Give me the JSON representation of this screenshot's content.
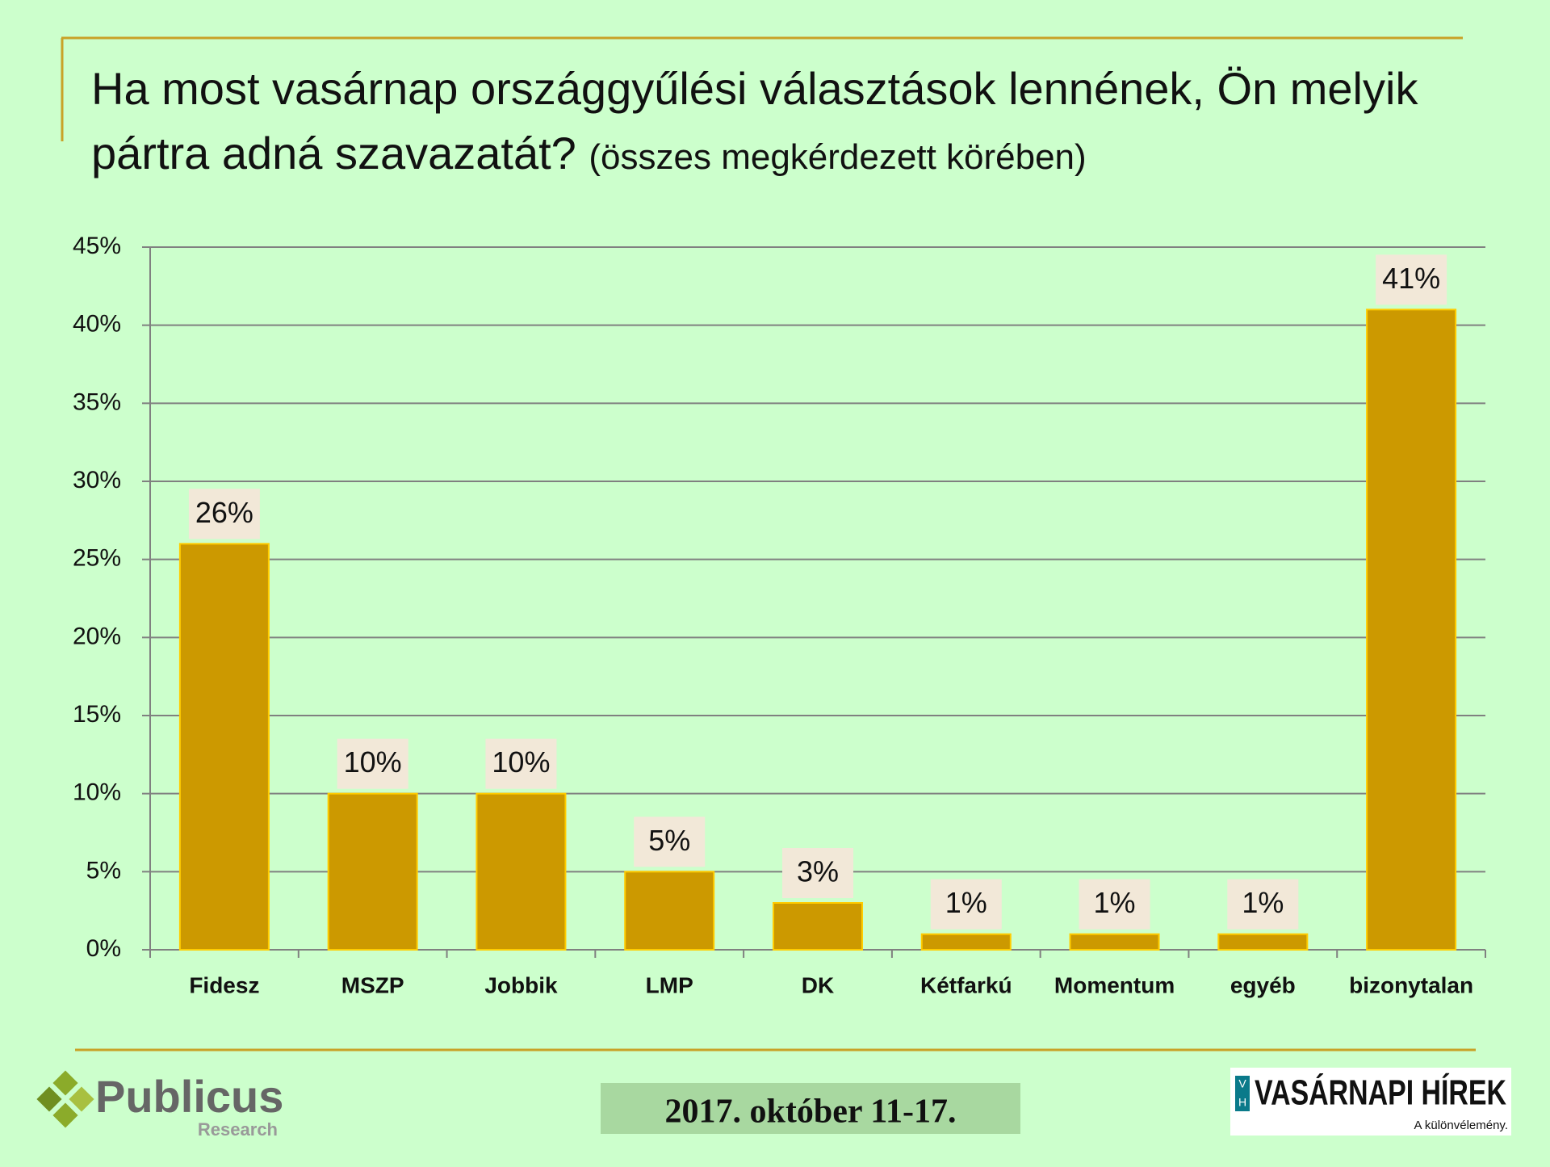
{
  "chart_data": {
    "type": "bar",
    "title": "Ha most vasárnap országgyűlési választások lennének, Ön melyik pártra adná szavazatát?",
    "subtitle": "(összes megkérdezett körében)",
    "categories": [
      "Fidesz",
      "MSZP",
      "Jobbik",
      "LMP",
      "DK",
      "Kétfarkú",
      "Momentum",
      "egyéb",
      "bizonytalan"
    ],
    "values": [
      26,
      10,
      10,
      5,
      3,
      1,
      1,
      1,
      41
    ],
    "value_labels": [
      "26%",
      "10%",
      "10%",
      "5%",
      "3%",
      "1%",
      "1%",
      "1%",
      "41%"
    ],
    "color": "#cc9900",
    "ylim": [
      0,
      45
    ],
    "yticks": [
      {
        "value": 0,
        "label": "0%"
      },
      {
        "value": 5,
        "label": "5%"
      },
      {
        "value": 10,
        "label": "10%"
      },
      {
        "value": 15,
        "label": "15%"
      },
      {
        "value": 20,
        "label": "20%"
      },
      {
        "value": 25,
        "label": "25%"
      },
      {
        "value": 30,
        "label": "30%"
      },
      {
        "value": 35,
        "label": "35%"
      },
      {
        "value": 40,
        "label": "40%"
      },
      {
        "value": 45,
        "label": "45%"
      }
    ],
    "grid": true
  },
  "footer": {
    "date": "2017. október 11-17.",
    "left_logo": {
      "name": "Publicus",
      "sub": "Research"
    },
    "right_logo": {
      "mark_top": "V",
      "mark_bottom": "H",
      "name": "VASÁRNAPI HÍREK",
      "tagline": "A különvélemény."
    }
  }
}
